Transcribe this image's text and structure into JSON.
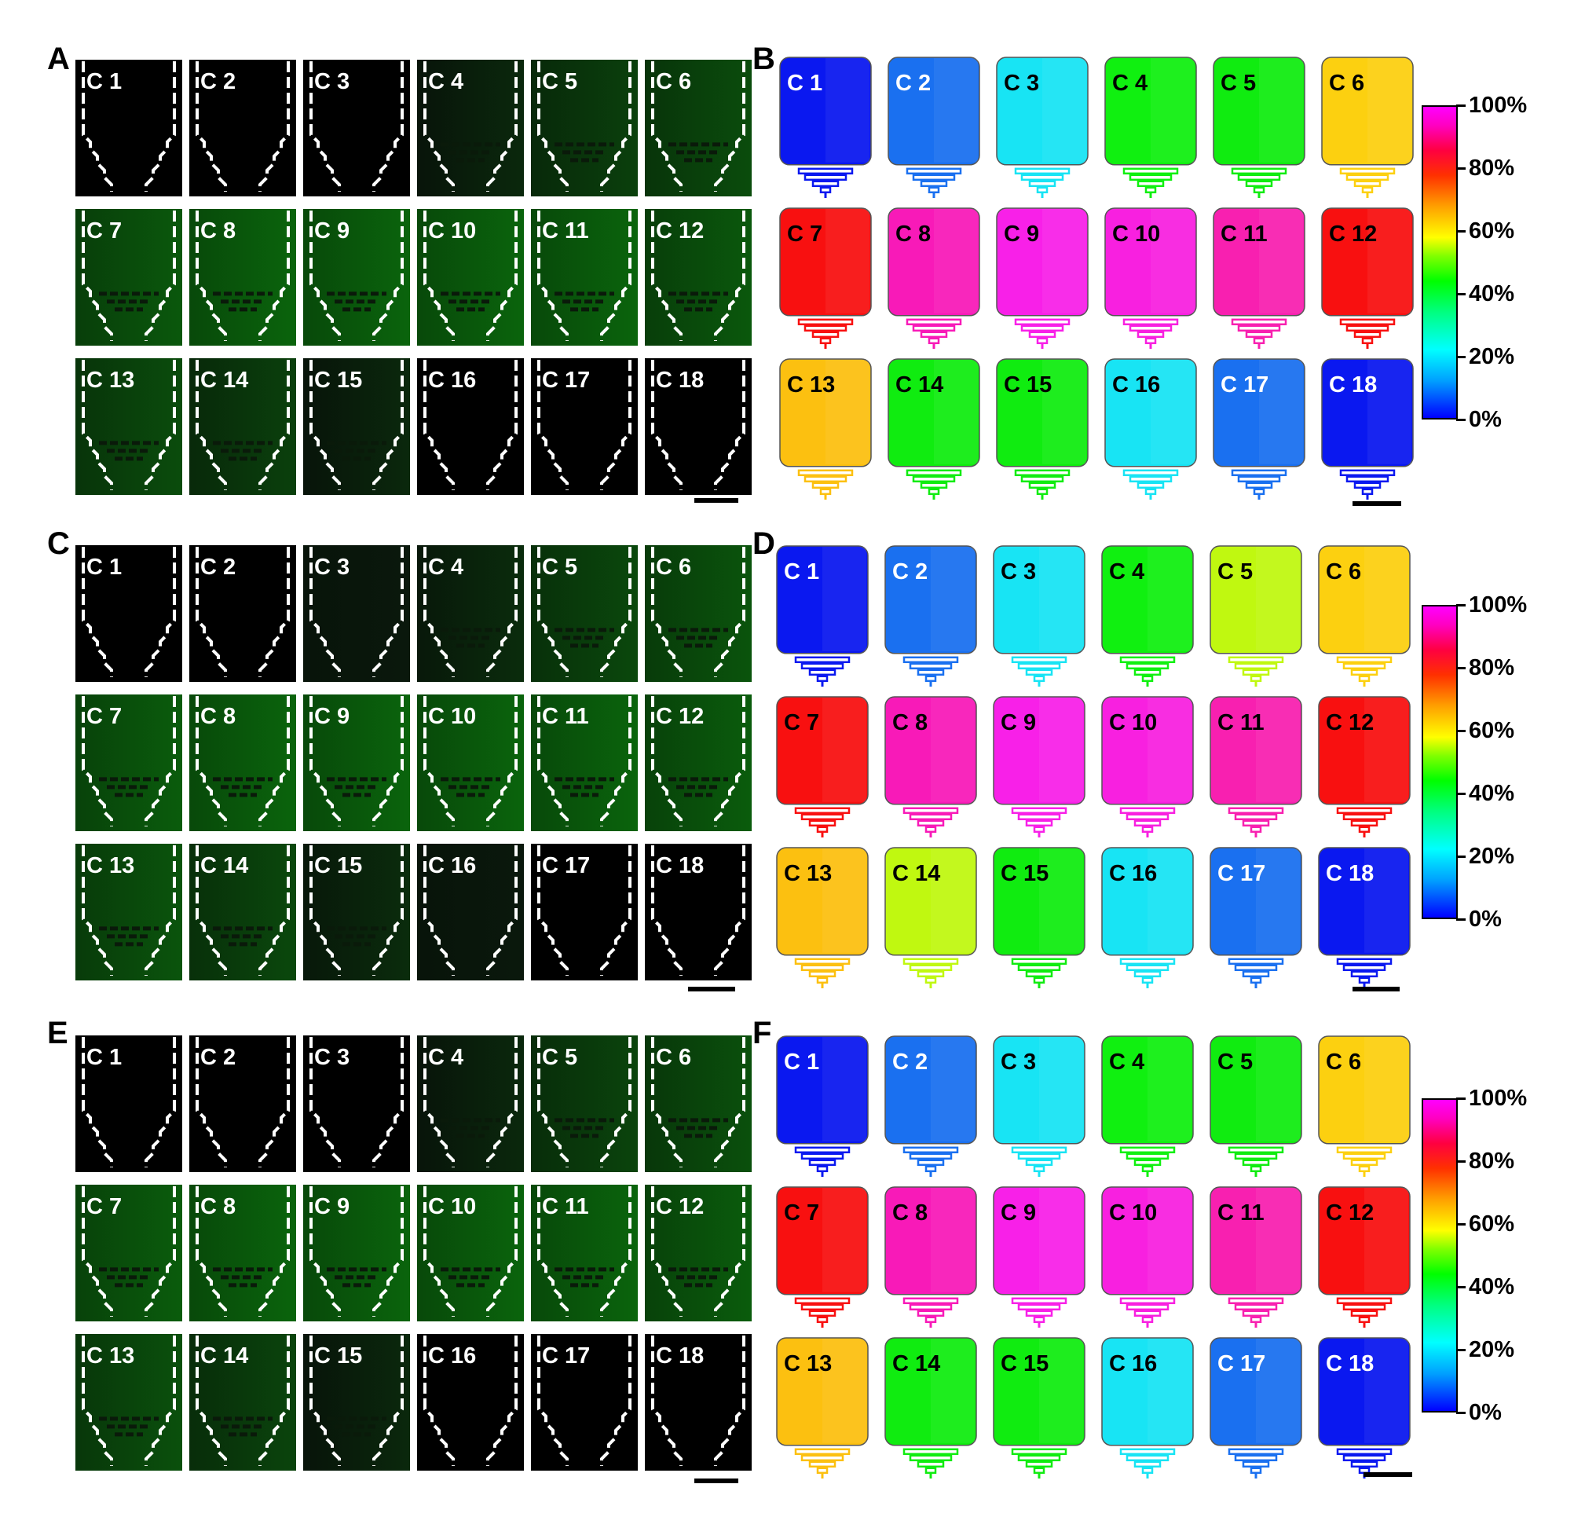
{
  "panel_letters": {
    "A": "A",
    "B": "B",
    "C": "C",
    "D": "D",
    "E": "E",
    "F": "F"
  },
  "chamber_labels": [
    "C 1",
    "C 2",
    "C 3",
    "C 4",
    "C 5",
    "C 6",
    "C 7",
    "C 8",
    "C 9",
    "C 10",
    "C 11",
    "C 12",
    "C 13",
    "C 14",
    "C 15",
    "C 16",
    "C 17",
    "C 18"
  ],
  "colorbar": {
    "ticks": [
      "100%",
      "80%",
      "60%",
      "40%",
      "20%",
      "0%"
    ],
    "stops": [
      "#0000ff",
      "#00a0ff",
      "#00ffff",
      "#00ff00",
      "#ffff00",
      "#ff0000",
      "#ff00ff"
    ]
  },
  "panels": {
    "A": {
      "intensity": [
        0,
        0,
        0,
        0.25,
        0.55,
        0.7,
        0.85,
        1.0,
        1.0,
        1.0,
        1.0,
        0.85,
        0.7,
        0.55,
        0.25,
        0,
        0,
        0
      ]
    },
    "B": {
      "colors": [
        "#0a18f0",
        "#1a70f0",
        "#18e4f4",
        "#10f010",
        "#10ec10",
        "#fcd010",
        "#f81010",
        "#f81ab8",
        "#f820e8",
        "#f820e0",
        "#f820b0",
        "#f81010",
        "#fcc010",
        "#10ec10",
        "#10ec10",
        "#18e4f4",
        "#1a70f0",
        "#0a18f0"
      ],
      "label_colors": [
        "#ffffff",
        "#ffffff",
        "#000000",
        "#000000",
        "#000000",
        "#000000",
        "#000000",
        "#000000",
        "#000000",
        "#000000",
        "#000000",
        "#000000",
        "#000000",
        "#000000",
        "#000000",
        "#000000",
        "#ffffff",
        "#ffffff"
      ]
    },
    "C": {
      "intensity": [
        0,
        0,
        0.05,
        0.3,
        0.65,
        0.8,
        0.9,
        1.0,
        1.0,
        1.0,
        1.0,
        0.9,
        0.8,
        0.65,
        0.3,
        0.05,
        0,
        0
      ]
    },
    "D": {
      "colors": [
        "#0a18f0",
        "#1a70f0",
        "#18e4f4",
        "#10f010",
        "#c0f810",
        "#fcd010",
        "#f81010",
        "#f81ab8",
        "#f820e8",
        "#f820e0",
        "#f820b0",
        "#f81010",
        "#fcc010",
        "#c0f810",
        "#10ec10",
        "#18e4f4",
        "#1a70f0",
        "#0a18f0"
      ],
      "label_colors": [
        "#ffffff",
        "#ffffff",
        "#000000",
        "#000000",
        "#000000",
        "#000000",
        "#000000",
        "#000000",
        "#000000",
        "#000000",
        "#000000",
        "#000000",
        "#000000",
        "#000000",
        "#000000",
        "#000000",
        "#ffffff",
        "#ffffff"
      ]
    },
    "E": {
      "intensity": [
        0,
        0,
        0,
        0.25,
        0.6,
        0.75,
        0.9,
        1.0,
        1.0,
        1.0,
        1.0,
        0.9,
        0.75,
        0.6,
        0.25,
        0,
        0,
        0
      ]
    },
    "F": {
      "colors": [
        "#0a18f0",
        "#1a70f0",
        "#18e4f4",
        "#10f010",
        "#10ec10",
        "#fcd010",
        "#f81010",
        "#f81ab8",
        "#f820e8",
        "#f820e0",
        "#f820b0",
        "#f81010",
        "#fcc010",
        "#10ec10",
        "#10ec10",
        "#18e4f4",
        "#1a70f0",
        "#0a18f0"
      ],
      "label_colors": [
        "#ffffff",
        "#ffffff",
        "#000000",
        "#000000",
        "#000000",
        "#000000",
        "#000000",
        "#000000",
        "#000000",
        "#000000",
        "#000000",
        "#000000",
        "#000000",
        "#000000",
        "#000000",
        "#000000",
        "#ffffff",
        "#ffffff"
      ]
    }
  }
}
